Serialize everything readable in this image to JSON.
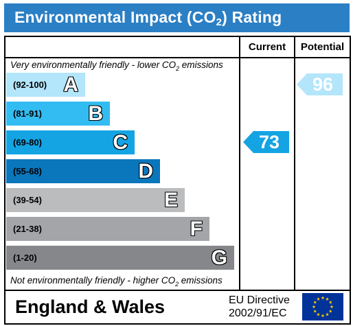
{
  "title": {
    "before": "Environmental Impact (CO",
    "sub": "2",
    "after": ") Rating"
  },
  "columns": {
    "current": "Current",
    "potential": "Potential"
  },
  "top_note": {
    "before": "Very environmentally friendly - lower CO",
    "sub": "2",
    "after": " emissions"
  },
  "bottom_note": {
    "before": "Not environmentally friendly - higher CO",
    "sub": "2",
    "after": " emissions"
  },
  "footer": {
    "country": "England & Wales",
    "directive_line1": "EU Directive",
    "directive_line2": "2002/91/EC",
    "flag_icon": "eu-flag-icon"
  },
  "chart_data": {
    "type": "bar",
    "title": "Environmental Impact (CO2) Rating",
    "categories": [
      "A",
      "B",
      "C",
      "D",
      "E",
      "F",
      "G"
    ],
    "bands": [
      {
        "letter": "A",
        "range": "(92-100)",
        "color": "#b3e5fb"
      },
      {
        "letter": "B",
        "range": "(81-91)",
        "color": "#33bcf1"
      },
      {
        "letter": "C",
        "range": "(69-80)",
        "color": "#14a4e4"
      },
      {
        "letter": "D",
        "range": "(55-68)",
        "color": "#0a76bc"
      },
      {
        "letter": "E",
        "range": "(39-54)",
        "color": "#bbbcbe"
      },
      {
        "letter": "F",
        "range": "(21-38)",
        "color": "#a4a5a8"
      },
      {
        "letter": "G",
        "range": "(1-20)",
        "color": "#86878a"
      }
    ],
    "current": {
      "value": 73,
      "band": "C",
      "color": "#14a4e4"
    },
    "potential": {
      "value": 96,
      "band": "A",
      "color": "#b3e5fb"
    }
  }
}
